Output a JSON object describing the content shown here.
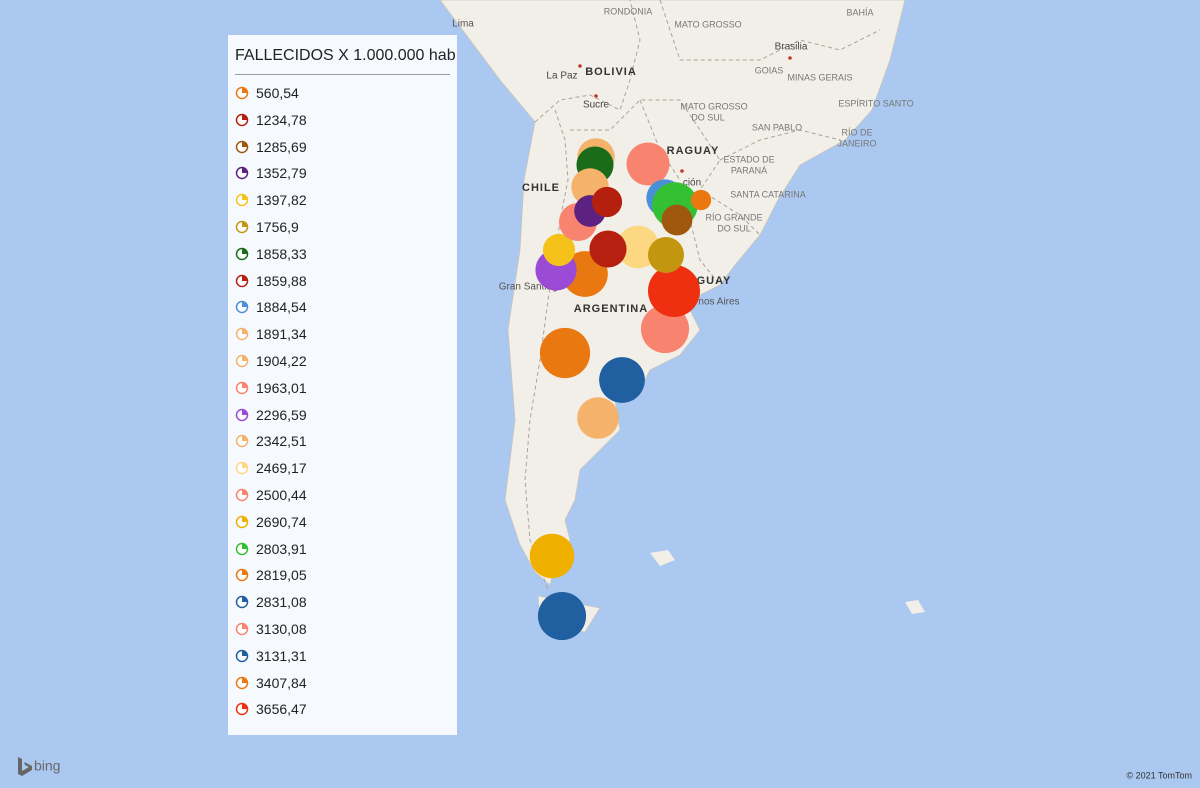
{
  "legend": {
    "title": "FALLECIDOS X 1.000.000 hab",
    "items": [
      {
        "label": "560,54",
        "value": 560.54,
        "color": "#e8780f"
      },
      {
        "label": "1234,78",
        "value": 1234.78,
        "color": "#b5200e"
      },
      {
        "label": "1285,69",
        "value": 1285.69,
        "color": "#a0580f"
      },
      {
        "label": "1352,79",
        "value": 1352.79,
        "color": "#5c2181"
      },
      {
        "label": "1397,82",
        "value": 1397.82,
        "color": "#f5c21b"
      },
      {
        "label": "1756,9",
        "value": 1756.9,
        "color": "#c2960e"
      },
      {
        "label": "1858,33",
        "value": 1858.33,
        "color": "#1a6b1a"
      },
      {
        "label": "1859,88",
        "value": 1859.88,
        "color": "#b52010"
      },
      {
        "label": "1884,54",
        "value": 1884.54,
        "color": "#4a90d9"
      },
      {
        "label": "1891,34",
        "value": 1891.34,
        "color": "#f5b26b"
      },
      {
        "label": "1904,22",
        "value": 1904.22,
        "color": "#f5b26b"
      },
      {
        "label": "1963,01",
        "value": 1963.01,
        "color": "#f88470"
      },
      {
        "label": "2296,59",
        "value": 2296.59,
        "color": "#9b4ad6"
      },
      {
        "label": "2342,51",
        "value": 2342.51,
        "color": "#f5b26b"
      },
      {
        "label": "2469,17",
        "value": 2469.17,
        "color": "#fdd882"
      },
      {
        "label": "2500,44",
        "value": 2500.44,
        "color": "#f88470"
      },
      {
        "label": "2690,74",
        "value": 2690.74,
        "color": "#f0b000"
      },
      {
        "label": "2803,91",
        "value": 2803.91,
        "color": "#33c033"
      },
      {
        "label": "2819,05",
        "value": 2819.05,
        "color": "#e8780f"
      },
      {
        "label": "2831,08",
        "value": 2831.08,
        "color": "#2060a0"
      },
      {
        "label": "3130,08",
        "value": 3130.08,
        "color": "#f88470"
      },
      {
        "label": "3131,31",
        "value": 3131.31,
        "color": "#2060a0"
      },
      {
        "label": "3407,84",
        "value": 3407.84,
        "color": "#e8780f"
      },
      {
        "label": "3656,47",
        "value": 3656.47,
        "color": "#ee3010"
      }
    ]
  },
  "map_labels": [
    "Lima",
    "RONDONIA",
    "MATO GROSSO",
    "BAHÍA",
    "Brasilia",
    "GOIAS",
    "MINAS GERAIS",
    "ESPÍRITO SANTO",
    "La Paz",
    "BOLIVIA",
    "Sucre",
    "MATO GROSSO",
    "DO SUL",
    "SAN PABLO",
    "RÍO DE",
    "JANEIRO",
    "RAGUAY",
    "ESTADO DE",
    "PARANÁ",
    "ción",
    "SANTA CATARINA",
    "RÍO GRANDE",
    "DO SUL",
    "CHILE",
    "Gran Santiago",
    "ARGENTINA",
    "GUAY",
    "nos Aires"
  ],
  "footer": {
    "logo": "bing",
    "copyright": "© 2021 TomTom"
  }
}
